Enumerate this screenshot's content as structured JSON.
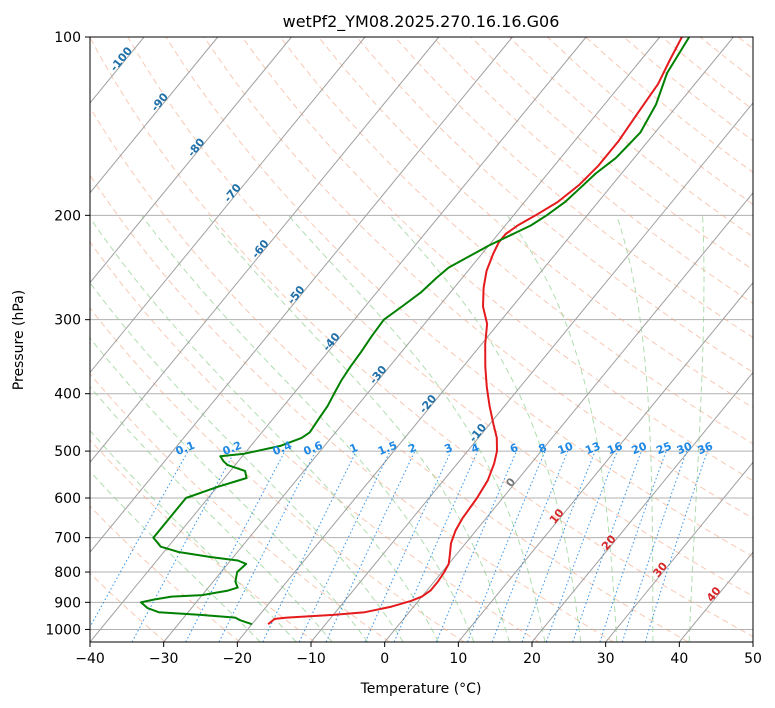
{
  "chart_data": {
    "type": "line",
    "title": "wetPf2_YM08.2025.270.16.16.G06",
    "xlabel": "Temperature (°C)",
    "ylabel": "Pressure (hPa)",
    "xlim": [
      -40,
      50
    ],
    "ylim": [
      1050,
      100
    ],
    "y_scale": "log",
    "grid": true,
    "x_ticks": [
      -40,
      -30,
      -20,
      -10,
      0,
      10,
      20,
      30,
      40,
      50
    ],
    "y_ticks": [
      100,
      200,
      300,
      400,
      500,
      600,
      700,
      800,
      900,
      1000
    ],
    "colors": {
      "temperature": "#e41a1c",
      "dewpoint": "#008000",
      "isotherm": "#a0a0a0",
      "dry_adiabat": "#f4a582",
      "moist_adiabat": "#8fcf8f",
      "mixing_ratio": "#1e88e5",
      "isotherm_label": "#1f6fa8",
      "warm_label": "#d62728"
    },
    "isotherm_labels": [
      "-100",
      "-90",
      "-80",
      "-70",
      "-60",
      "-50",
      "-40",
      "-30",
      "-20",
      "-10",
      "0",
      "10",
      "20",
      "30",
      "40"
    ],
    "isotherm_label_values": [
      -100,
      -90,
      -80,
      -70,
      -60,
      -50,
      -40,
      -30,
      -20,
      -10,
      0,
      10,
      20,
      30,
      40
    ],
    "mixing_ratio_labels": [
      "0.1",
      "0.2",
      "0.4",
      "0.6",
      "1",
      "1.5",
      "2",
      "3",
      "4",
      "6",
      "8",
      "10",
      "13",
      "16",
      "20",
      "25",
      "30",
      "36"
    ],
    "mixing_ratio_values": [
      0.1,
      0.2,
      0.4,
      0.6,
      1,
      1.5,
      2,
      3,
      4,
      6,
      8,
      10,
      13,
      16,
      20,
      25,
      30,
      36
    ],
    "series": [
      {
        "values": [
          [
            -17.8,
            980
          ],
          [
            -17.5,
            960
          ],
          [
            -16,
            955
          ],
          [
            -10,
            945
          ],
          [
            -6,
            935
          ],
          [
            -3,
            915
          ],
          [
            -1,
            895
          ],
          [
            0,
            880
          ],
          [
            0.5,
            860
          ],
          [
            0.5,
            830
          ],
          [
            0.3,
            800
          ],
          [
            0,
            775
          ],
          [
            -0.8,
            750
          ],
          [
            -2,
            715
          ],
          [
            -2.8,
            680
          ],
          [
            -3.2,
            650
          ],
          [
            -3.5,
            600
          ],
          [
            -4,
            560
          ],
          [
            -5,
            525
          ],
          [
            -6,
            500
          ],
          [
            -7.5,
            475
          ],
          [
            -9.5,
            450
          ],
          [
            -12,
            420
          ],
          [
            -14.5,
            390
          ],
          [
            -17,
            360
          ],
          [
            -19.5,
            330
          ],
          [
            -21.5,
            305
          ],
          [
            -24,
            285
          ],
          [
            -26,
            265
          ],
          [
            -27.5,
            248
          ],
          [
            -28.5,
            232
          ],
          [
            -29,
            222
          ],
          [
            -29,
            215
          ],
          [
            -28.3,
            208
          ],
          [
            -27,
            200
          ],
          [
            -25.5,
            190
          ],
          [
            -24.5,
            178
          ],
          [
            -24,
            165
          ],
          [
            -24,
            150
          ],
          [
            -24.5,
            135
          ],
          [
            -25,
            120
          ],
          [
            -26,
            110
          ],
          [
            -27,
            100
          ]
        ]
      },
      {
        "values": [
          [
            -20,
            980
          ],
          [
            -22,
            965
          ],
          [
            -23,
            955
          ],
          [
            -28,
            945
          ],
          [
            -34,
            935
          ],
          [
            -36,
            920
          ],
          [
            -37.5,
            900
          ],
          [
            -36,
            890
          ],
          [
            -34,
            880
          ],
          [
            -30,
            875
          ],
          [
            -27,
            860
          ],
          [
            -26,
            850
          ],
          [
            -26.5,
            840
          ],
          [
            -27,
            830
          ],
          [
            -27.8,
            800
          ],
          [
            -27.5,
            775
          ],
          [
            -29,
            765
          ],
          [
            -33,
            755
          ],
          [
            -38,
            740
          ],
          [
            -41,
            725
          ],
          [
            -43,
            700
          ],
          [
            -43,
            600
          ],
          [
            -40,
            575
          ],
          [
            -37,
            555
          ],
          [
            -38,
            540
          ],
          [
            -41,
            528
          ],
          [
            -42,
            520
          ],
          [
            -43,
            510
          ],
          [
            -40,
            505
          ],
          [
            -36,
            490
          ],
          [
            -34,
            475
          ],
          [
            -33.5,
            465
          ],
          [
            -33.8,
            440
          ],
          [
            -34,
            420
          ],
          [
            -34.5,
            400
          ],
          [
            -35,
            380
          ],
          [
            -35.3,
            360
          ],
          [
            -35.5,
            340
          ],
          [
            -35.8,
            320
          ],
          [
            -36,
            300
          ],
          [
            -35,
            285
          ],
          [
            -34,
            270
          ],
          [
            -33.5,
            255
          ],
          [
            -33,
            245
          ],
          [
            -31.5,
            235
          ],
          [
            -30,
            225
          ],
          [
            -28,
            215
          ],
          [
            -26.5,
            208
          ],
          [
            -25.5,
            200
          ],
          [
            -24.5,
            190
          ],
          [
            -24,
            180
          ],
          [
            -23.5,
            170
          ],
          [
            -22.5,
            160
          ],
          [
            -22,
            145
          ],
          [
            -23,
            130
          ],
          [
            -25,
            115
          ],
          [
            -26,
            100
          ]
        ]
      }
    ]
  }
}
